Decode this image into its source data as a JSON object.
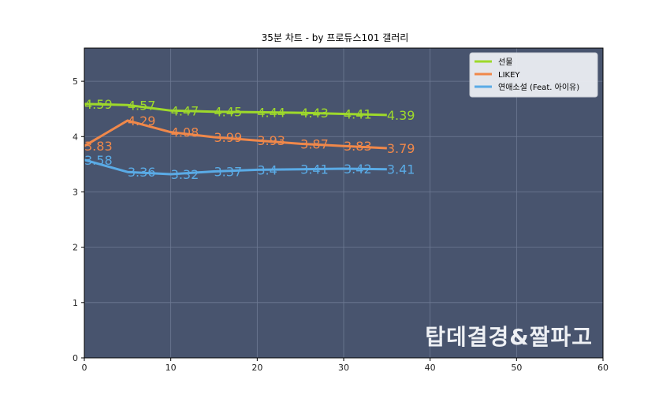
{
  "chart_data": {
    "type": "line",
    "title": "35분 차트 - by 프로듀스101 갤러리",
    "xlabel": "",
    "ylabel": "",
    "xlim": [
      0,
      60
    ],
    "ylim": [
      0,
      5.6
    ],
    "xticks": [
      0,
      10,
      20,
      30,
      40,
      50,
      60
    ],
    "yticks": [
      0,
      1,
      2,
      3,
      4,
      5
    ],
    "grid": true,
    "legend_position": "top-right",
    "background_color": "#48546e",
    "x": [
      0,
      5,
      10,
      15,
      20,
      25,
      30,
      35
    ],
    "series": [
      {
        "name": "선물",
        "color": "#9ed92b",
        "values": [
          4.59,
          4.57,
          4.47,
          4.45,
          4.44,
          4.43,
          4.41,
          4.39
        ],
        "labels": [
          "4.59",
          "4.57",
          "4.47",
          "4.45",
          "4.44",
          "4.43",
          "4.41",
          "4.39"
        ]
      },
      {
        "name": "LIKEY",
        "color": "#f0884a",
        "values": [
          3.83,
          4.29,
          4.08,
          3.99,
          3.93,
          3.87,
          3.83,
          3.79
        ],
        "labels": [
          "3.83",
          "4.29",
          "4.08",
          "3.99",
          "3.93",
          "3.87",
          "3.83",
          "3.79"
        ]
      },
      {
        "name": "연애소설 (Feat. 아이유)",
        "color": "#5aabe6",
        "values": [
          3.58,
          3.36,
          3.32,
          3.37,
          3.4,
          3.41,
          3.42,
          3.41
        ],
        "labels": [
          "3.58",
          "3.36",
          "3.32",
          "3.37",
          "3.4",
          "3.41",
          "3.42",
          "3.41"
        ]
      }
    ],
    "watermark": "탑데결경&짤파고"
  }
}
